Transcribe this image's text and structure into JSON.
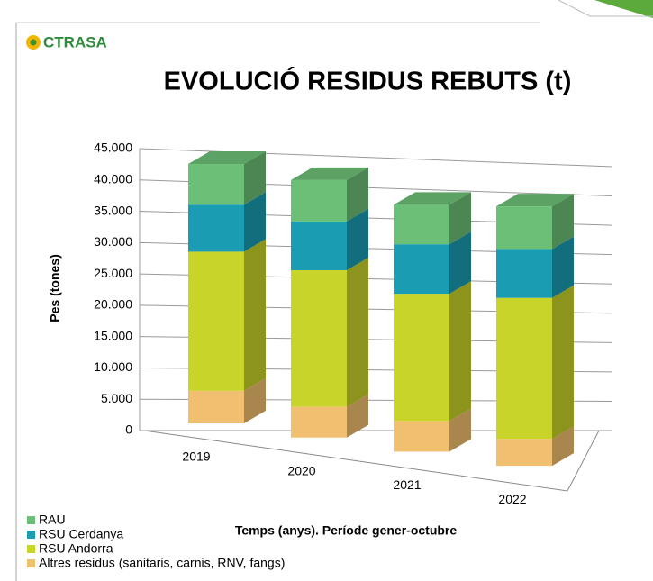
{
  "logo": "CTRASA",
  "chart_data": {
    "type": "bar3d_stacked",
    "title": "EVOLUCIÓ RESIDUS REBUTS (t)",
    "x_label": "Temps (anys). Període gener-octubre",
    "y_label": "Pes (tones)",
    "categories": [
      "2019",
      "2020",
      "2021",
      "2022"
    ],
    "series": [
      {
        "name": "Altres residus (sanitaris, carnis, RNV, fangs)",
        "color": "#f0bf6f",
        "values": [
          5200,
          4900,
          4900,
          4300
        ]
      },
      {
        "name": "RSU Andorra",
        "color": "#c9d42b",
        "values": [
          22200,
          21800,
          20300,
          22500
        ]
      },
      {
        "name": "RSU Cerdanya",
        "color": "#1a9db3",
        "values": [
          7500,
          7800,
          7900,
          7800
        ]
      },
      {
        "name": "RAU",
        "color": "#6bbf76",
        "values": [
          6500,
          6600,
          6300,
          6800
        ]
      }
    ],
    "ylim": [
      0,
      45000
    ],
    "yticks": [
      0,
      {
        "value": 5000,
        "label": "5.000"
      },
      {
        "value": 10000,
        "label": "10.000"
      },
      {
        "value": 15000,
        "label": "15.000"
      },
      {
        "value": 20000,
        "label": "20.000"
      },
      {
        "value": 25000,
        "label": "25.000"
      },
      {
        "value": 30000,
        "label": "30.000"
      },
      {
        "value": 35000,
        "label": "35.000"
      },
      {
        "value": 40000,
        "label": "40.000"
      },
      {
        "value": 45000,
        "label": "45.000"
      }
    ],
    "grid": true
  }
}
